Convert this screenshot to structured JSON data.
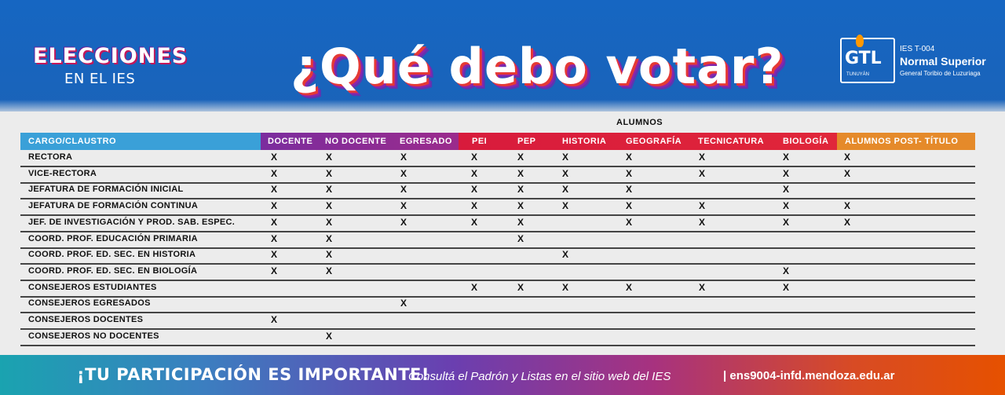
{
  "header": {
    "event_title": "ELECCIONES",
    "event_subtitle": "EN EL IES",
    "headline": "¿Qué debo votar?",
    "logo_letters": "GTL",
    "logo_place": "TUNUYÁN",
    "institution_code": "IES T-004",
    "institution_name": "Normal Superior",
    "institution_full": "General Toribio de Luzuriaga"
  },
  "table": {
    "group_label": "ALUMNOS",
    "columns": [
      "CARGO/CLAUSTRO",
      "DOCENTE",
      "NO DOCENTE",
      "EGRESADO",
      "PEI",
      "PEP",
      "HISTORIA",
      "GEOGRAFÍA",
      "TECNICATURA",
      "BIOLOGÍA",
      "ALUMNOS POST- TÍTULO"
    ],
    "mark": "X",
    "rows": [
      {
        "label": "RECTORA",
        "marks": [
          1,
          1,
          1,
          1,
          1,
          1,
          1,
          1,
          1,
          1
        ]
      },
      {
        "label": "VICE-RECTORA",
        "marks": [
          1,
          1,
          1,
          1,
          1,
          1,
          1,
          1,
          1,
          1
        ]
      },
      {
        "label": "JEFATURA DE FORMACIÓN INICIAL",
        "marks": [
          1,
          1,
          1,
          1,
          1,
          1,
          1,
          0,
          1,
          0
        ]
      },
      {
        "label": "JEFATURA DE FORMACIÓN CONTINUA",
        "marks": [
          1,
          1,
          1,
          1,
          1,
          1,
          1,
          1,
          1,
          1
        ]
      },
      {
        "label": "JEF. DE INVESTIGACIÓN Y PROD. SAB. ESPEC.",
        "marks": [
          1,
          1,
          1,
          1,
          1,
          0,
          1,
          1,
          1,
          1
        ]
      },
      {
        "label": "COORD. PROF. EDUCACIÓN PRIMARIA",
        "marks": [
          1,
          1,
          0,
          0,
          1,
          0,
          0,
          0,
          0,
          0
        ]
      },
      {
        "label": "COORD. PROF. ED. SEC. EN HISTORIA",
        "marks": [
          1,
          1,
          0,
          0,
          0,
          1,
          0,
          0,
          0,
          0
        ]
      },
      {
        "label": "COORD. PROF. ED. SEC. EN BIOLOGÍA",
        "marks": [
          1,
          1,
          0,
          0,
          0,
          0,
          0,
          0,
          1,
          0
        ]
      },
      {
        "label": "CONSEJEROS ESTUDIANTES",
        "marks": [
          0,
          0,
          0,
          1,
          1,
          1,
          1,
          1,
          1,
          0
        ]
      },
      {
        "label": "CONSEJEROS EGRESADOS",
        "marks": [
          0,
          0,
          1,
          0,
          0,
          0,
          0,
          0,
          0,
          0
        ]
      },
      {
        "label": "CONSEJEROS DOCENTES",
        "marks": [
          1,
          0,
          0,
          0,
          0,
          0,
          0,
          0,
          0,
          0
        ]
      },
      {
        "label": "CONSEJEROS NO DOCENTES",
        "marks": [
          0,
          1,
          0,
          0,
          0,
          0,
          0,
          0,
          0,
          0
        ]
      }
    ]
  },
  "footer": {
    "emphasis": "¡TU PARTICIPACIÓN ES IMPORTANTE!",
    "note": "Consultá el Padrón y Listas en el sitio web del IES",
    "url": "| ens9004-infd.mendoza.edu.ar"
  },
  "colors": {
    "header_bg": "#1565c0",
    "cargo_col": "#3aa0d8",
    "docente_group": "#7b2d9e",
    "alumnos_group": "#d81b3c",
    "post_titulo": "#e58a2a"
  }
}
